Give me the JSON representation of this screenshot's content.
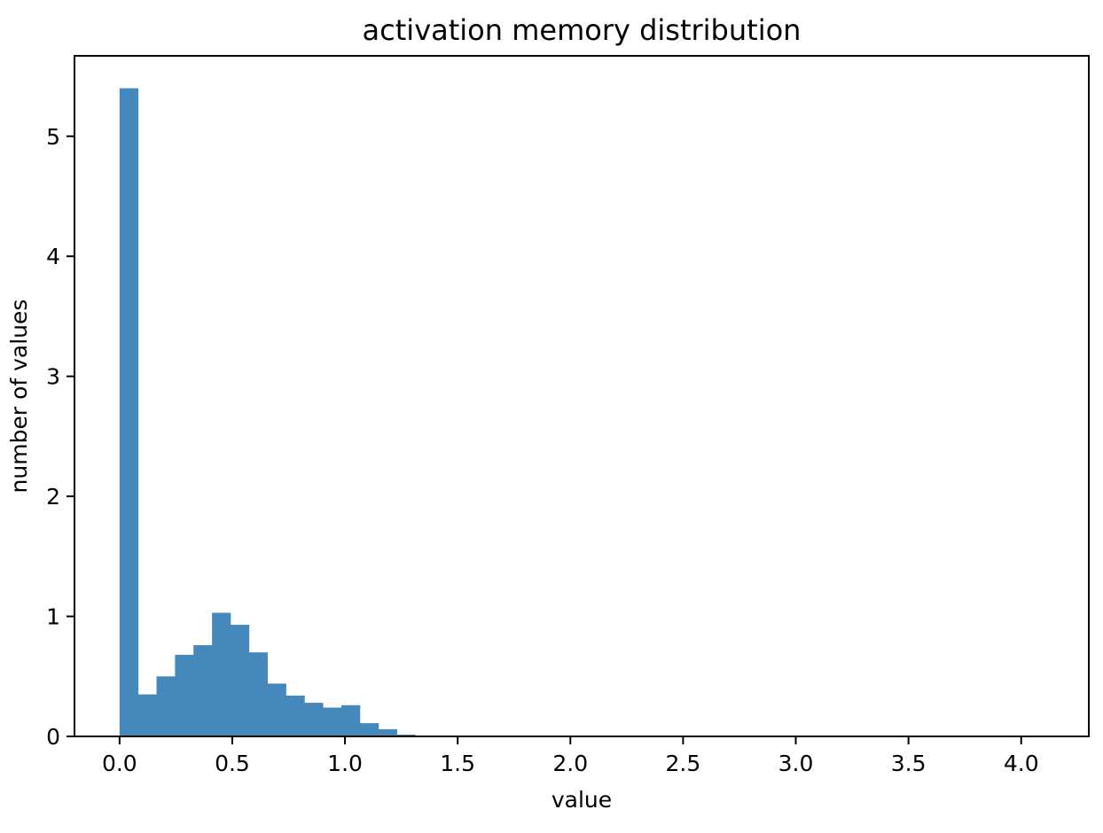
{
  "chart_data": {
    "type": "bar",
    "title": "activation memory distribution",
    "xlabel": "value",
    "ylabel": "number of values",
    "xlim": [
      -0.2,
      4.3
    ],
    "ylim": [
      0,
      5.67
    ],
    "xticks": [
      0.0,
      0.5,
      1.0,
      1.5,
      2.0,
      2.5,
      3.0,
      3.5,
      4.0
    ],
    "xtick_labels": [
      "0.0",
      "0.5",
      "1.0",
      "1.5",
      "2.0",
      "2.5",
      "3.0",
      "3.5",
      "4.0"
    ],
    "yticks": [
      0,
      1,
      2,
      3,
      4,
      5
    ],
    "ytick_labels": [
      "0",
      "1",
      "2",
      "3",
      "4",
      "5"
    ],
    "grid": false,
    "bar_color": "#4589BC",
    "bin_width": 0.082,
    "bin_edges": [
      0.0,
      0.082,
      0.164,
      0.246,
      0.328,
      0.41,
      0.492,
      0.574,
      0.656,
      0.738,
      0.82,
      0.902,
      0.984,
      1.066,
      1.148,
      1.23,
      1.312,
      1.394,
      1.476,
      1.558,
      1.64,
      1.722,
      1.804,
      1.886,
      1.968,
      2.05,
      2.132,
      2.214,
      2.296,
      2.378,
      2.46,
      2.542,
      2.624,
      2.706,
      2.788,
      2.87,
      2.952,
      3.034,
      3.116,
      3.198,
      3.28,
      3.362,
      3.444,
      3.526,
      3.608,
      3.69,
      3.772,
      3.854,
      3.936,
      4.018,
      4.1
    ],
    "values": [
      5.4,
      0.35,
      0.5,
      0.68,
      0.76,
      1.03,
      0.93,
      0.7,
      0.44,
      0.34,
      0.28,
      0.24,
      0.26,
      0.11,
      0.06,
      0.015,
      0.003,
      0.002,
      0.002,
      0.002,
      0.002,
      0.002,
      0.002,
      0.002,
      0.002,
      0.002,
      0.002,
      0.002,
      0.002,
      0.002,
      0.002,
      0.002,
      0.002,
      0.002,
      0.002,
      0.002,
      0.002,
      0.002,
      0.002,
      0.002,
      0.002,
      0.002,
      0.002,
      0.002,
      0.002,
      0.002,
      0.002,
      0.002,
      0.002,
      0.002
    ]
  }
}
